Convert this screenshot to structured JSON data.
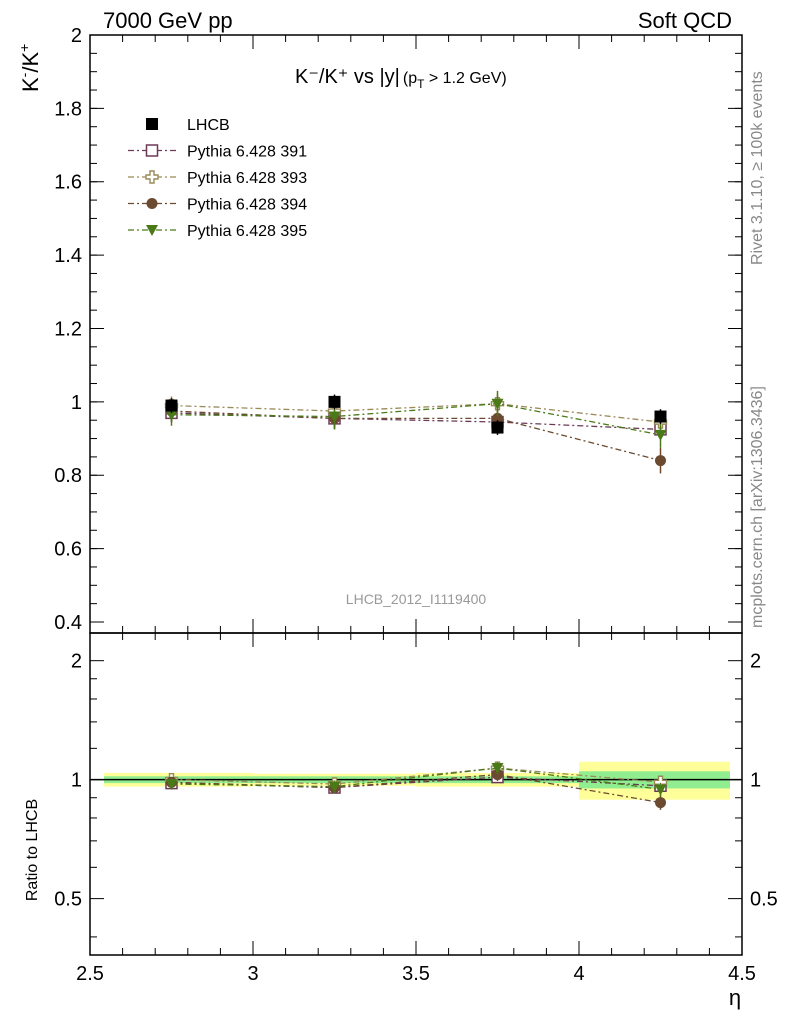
{
  "header": {
    "left": "7000 GeV pp",
    "right": "Soft QCD"
  },
  "side_labels": {
    "rivet": "Rivet 3.1.10, ≥ 100k events",
    "source": "mcplots.cern.ch [arXiv:1306.3436]"
  },
  "chart_data": [
    {
      "type": "scatter",
      "title_main": "K⁻/K⁺ vs |y|",
      "title_cut": "(p",
      "title_cut_sub": "T",
      "title_cut_tail": " > 1.2 GeV)",
      "ylabel_base": "K",
      "ylabel_sup1": "-",
      "ylabel_mid": "/K",
      "ylabel_sup2": "+",
      "analysis_id": "LHCB_2012_I1119400",
      "xlim": [
        2.5,
        4.5
      ],
      "ylim": [
        0.37,
        2.0
      ],
      "xticks": [
        "2.5",
        "3",
        "3.5",
        "4",
        "4.5"
      ],
      "yticks": [
        "0.4",
        "0.6",
        "0.8",
        "1",
        "1.2",
        "1.4",
        "1.6",
        "1.8",
        "2"
      ],
      "x": [
        2.75,
        3.25,
        3.75,
        4.25
      ],
      "series": [
        {
          "name": "LHCB",
          "color": "#000000",
          "marker": "square-filled",
          "line": "none",
          "values": [
            0.99,
            1.0,
            0.93,
            0.96
          ],
          "err": [
            0.02,
            0.02,
            0.02,
            0.02
          ]
        },
        {
          "name": "Pythia 6.428 391",
          "color": "#6b3a55",
          "marker": "square-open",
          "line": "dashdot",
          "values": [
            0.97,
            0.955,
            0.945,
            0.925
          ],
          "err": [
            0.025,
            0.025,
            0.02,
            0.025
          ]
        },
        {
          "name": "Pythia 6.428 393",
          "color": "#9a8a58",
          "marker": "plus-open",
          "line": "dashdot",
          "values": [
            0.99,
            0.975,
            0.995,
            0.945
          ],
          "err": [
            0.025,
            0.025,
            0.025,
            0.025
          ]
        },
        {
          "name": "Pythia 6.428 394",
          "color": "#6b4a30",
          "marker": "circle-filled",
          "line": "dashdot",
          "values": [
            0.975,
            0.955,
            0.955,
            0.84
          ],
          "err": [
            0.03,
            0.03,
            0.035,
            0.035
          ]
        },
        {
          "name": "Pythia 6.428 395",
          "color": "#4a7a18",
          "marker": "triangle-down",
          "line": "dashdot",
          "values": [
            0.965,
            0.96,
            0.995,
            0.91
          ],
          "err": [
            0.03,
            0.035,
            0.035,
            0.035
          ]
        }
      ],
      "legend_position": "top-left"
    },
    {
      "type": "scatter",
      "ylabel": "Ratio to LHCB",
      "xlabel": "η",
      "xlim": [
        2.5,
        4.5
      ],
      "ylim": [
        0.36,
        2.35
      ],
      "yticks": [
        "0.5",
        "1",
        "2"
      ],
      "x": [
        2.75,
        3.25,
        3.75,
        4.25
      ],
      "bands": [
        {
          "x0": 2.5,
          "x1": 3.0,
          "stat": 0.02,
          "total": 0.04
        },
        {
          "x0": 3.0,
          "x1": 3.5,
          "stat": 0.02,
          "total": 0.035
        },
        {
          "x0": 3.5,
          "x1": 4.0,
          "stat": 0.02,
          "total": 0.04
        },
        {
          "x0": 4.0,
          "x1": 4.5,
          "stat": 0.05,
          "total": 0.11
        }
      ],
      "band_colors": {
        "stat": "#90ee90",
        "total": "#ffff99"
      },
      "series": [
        {
          "name": "Pythia 6.428 391",
          "values": [
            0.98,
            0.955,
            1.015,
            0.965
          ]
        },
        {
          "name": "Pythia 6.428 393",
          "values": [
            1.0,
            0.975,
            1.07,
            0.985
          ]
        },
        {
          "name": "Pythia 6.428 394",
          "values": [
            0.985,
            0.955,
            1.03,
            0.875
          ]
        },
        {
          "name": "Pythia 6.428 395",
          "values": [
            0.975,
            0.96,
            1.07,
            0.945
          ]
        }
      ]
    }
  ]
}
